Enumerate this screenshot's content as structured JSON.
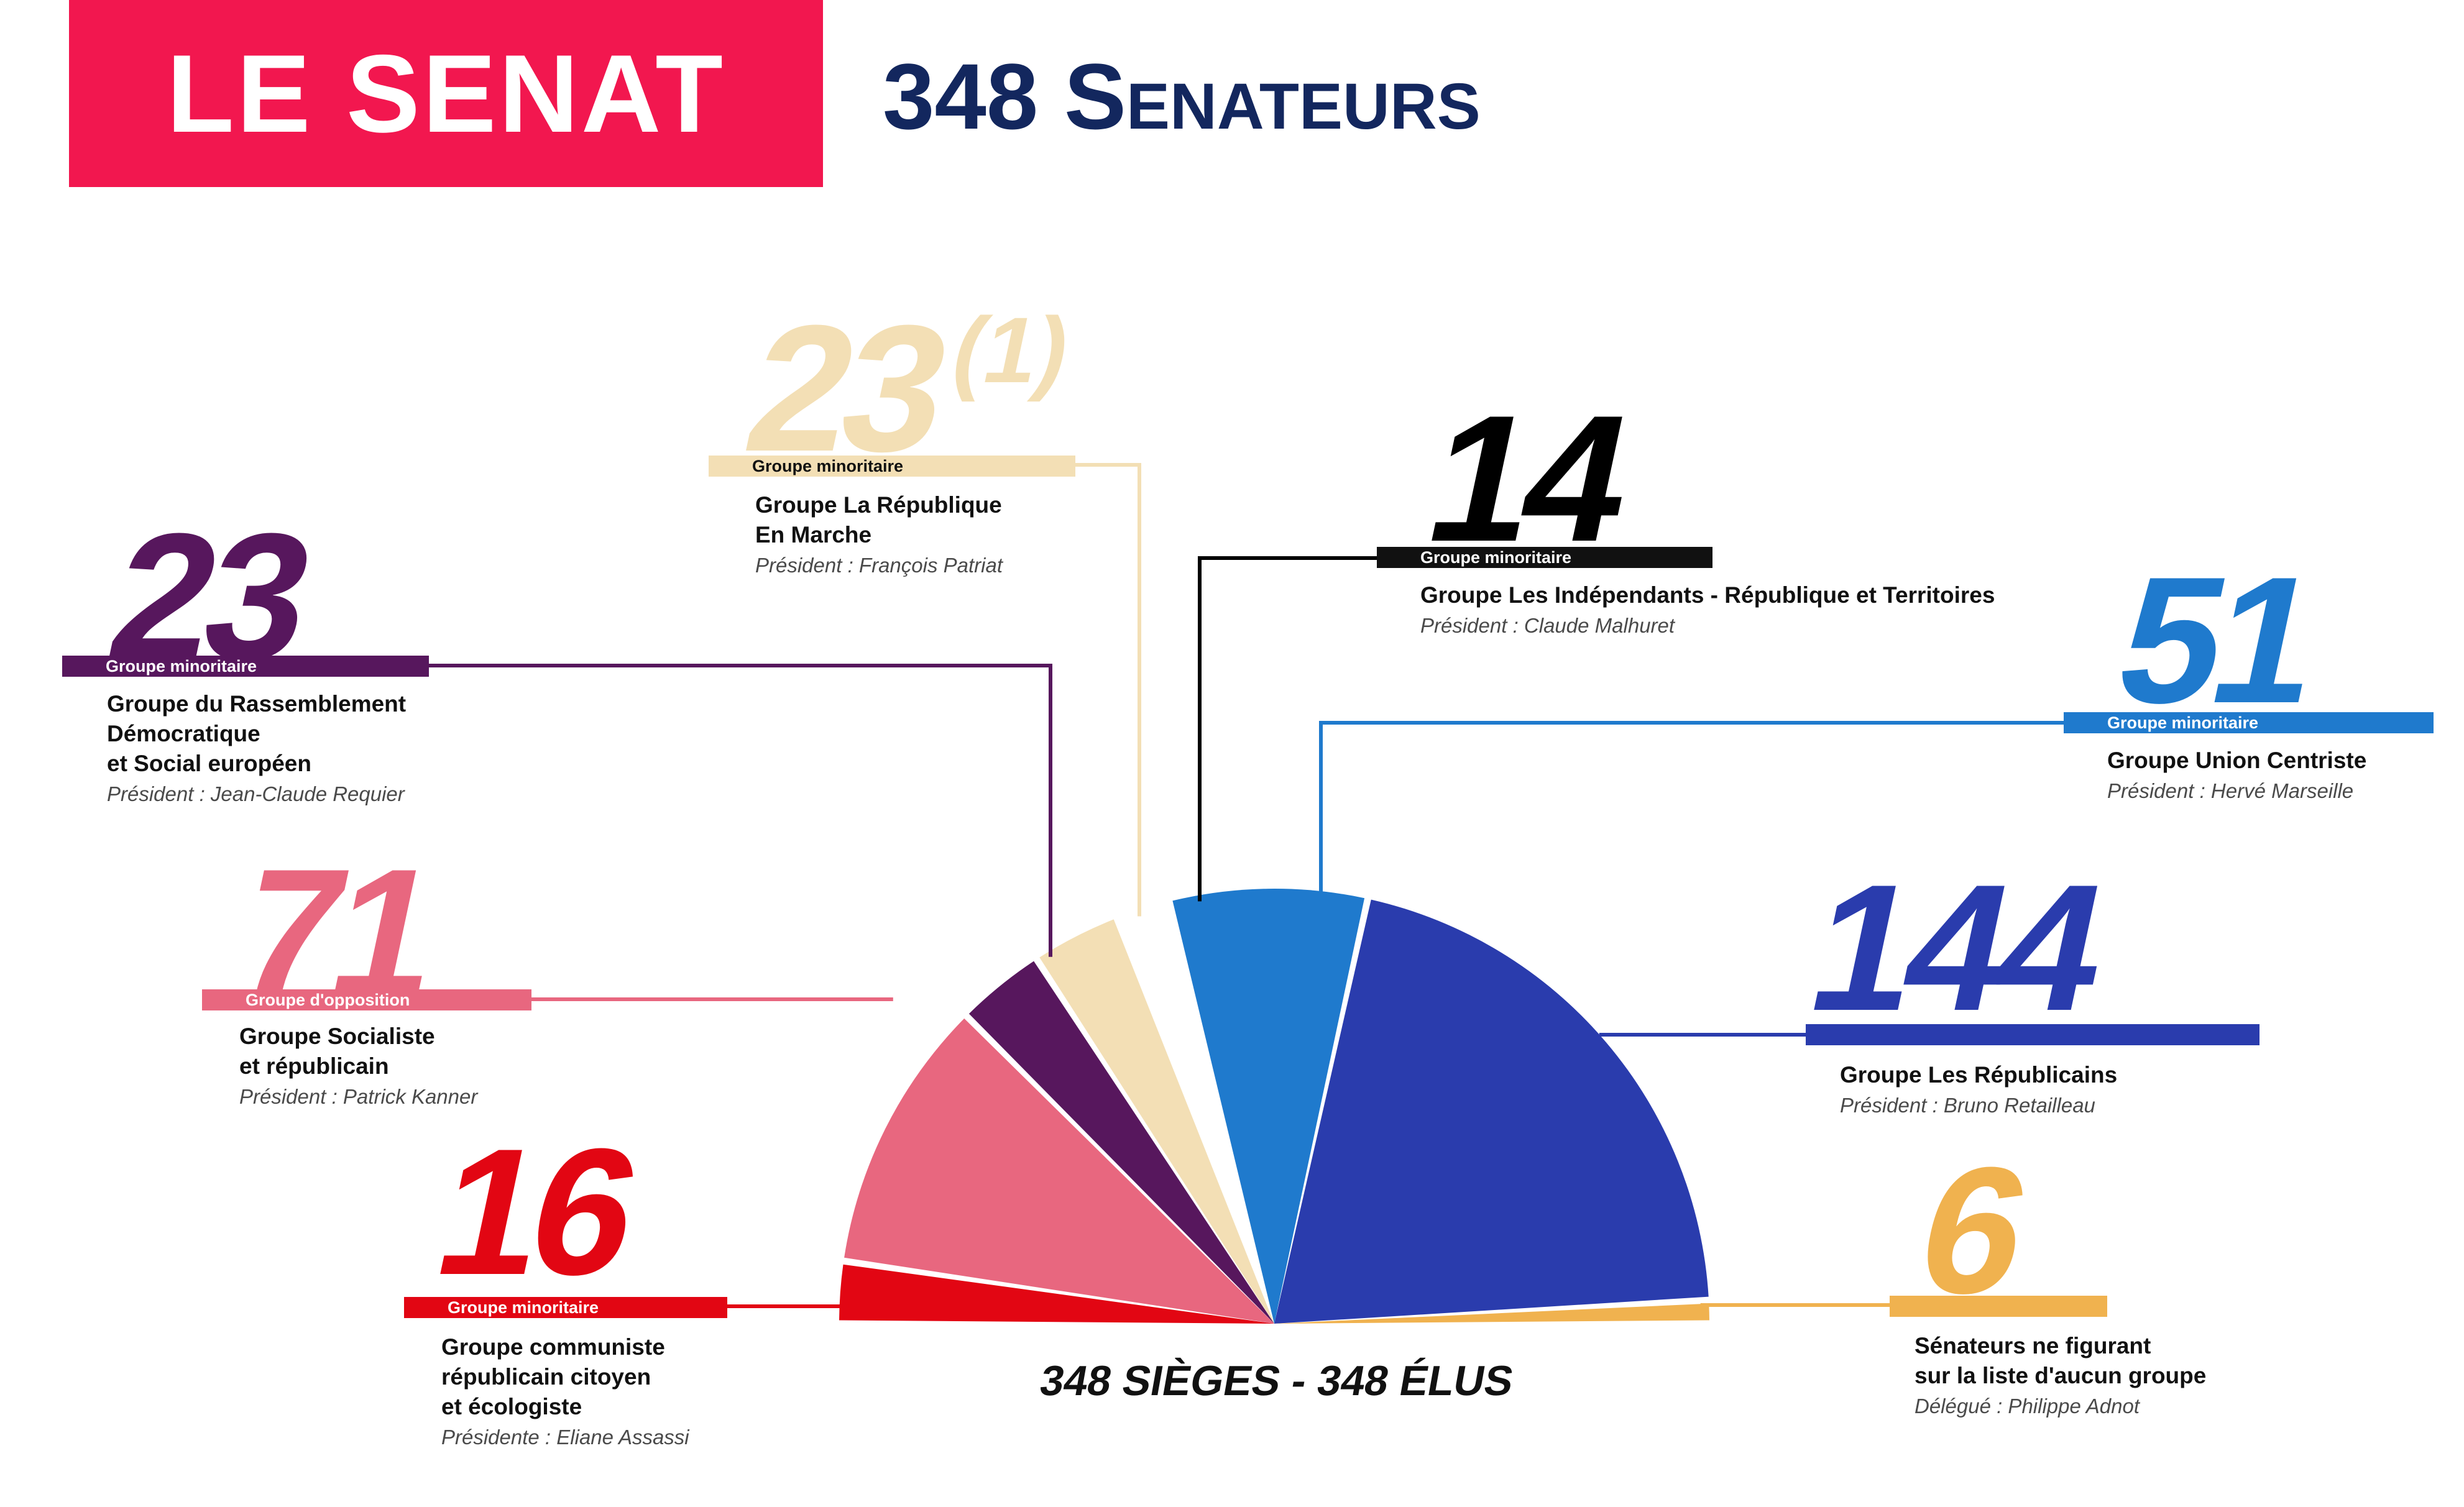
{
  "header": {
    "badge": "LE SENAT",
    "title": "348 Senateurs"
  },
  "chart_data": {
    "type": "pie",
    "layout": "semicircle",
    "total_label": "348 SIÈGES - 348 ÉLUS",
    "slices": [
      {
        "value": 16,
        "display": "16",
        "footnote": "",
        "status": "Groupe minoritaire",
        "lines": [
          "Groupe communiste",
          "républicain citoyen",
          "et écologiste"
        ],
        "president": "Présidente : Eliane Assassi",
        "color": "#e20613"
      },
      {
        "value": 71,
        "display": "71",
        "footnote": "",
        "status": "Groupe d'opposition",
        "lines": [
          "Groupe Socialiste",
          "et républicain"
        ],
        "president": "Président : Patrick Kanner",
        "color": "#e8677f"
      },
      {
        "value": 23,
        "display": "23",
        "footnote": "",
        "status": "Groupe minoritaire",
        "lines": [
          "Groupe du Rassemblement",
          "Démocratique",
          "et Social européen"
        ],
        "president": "Président : Jean-Claude Requier",
        "color": "#57175d"
      },
      {
        "value": 23,
        "display": "23",
        "footnote": "(1)",
        "status": "Groupe minoritaire",
        "lines": [
          "Groupe La République",
          "En Marche"
        ],
        "president": "Président : François Patriat",
        "color": "#f3dfb5"
      },
      {
        "value": 14,
        "display": "14",
        "footnote": "",
        "status": "Groupe minoritaire",
        "lines": [
          "Groupe Les Indépendants - République et Territoires"
        ],
        "president": "Président : Claude Malhuret",
        "color": "#ffffff"
      },
      {
        "value": 51,
        "display": "51",
        "footnote": "",
        "status": "Groupe minoritaire",
        "lines": [
          "Groupe Union Centriste"
        ],
        "president": "Président : Hervé Marseille",
        "color": "#1f7acd"
      },
      {
        "value": 144,
        "display": "144",
        "footnote": "",
        "status": "",
        "lines": [
          "Groupe Les Républicains"
        ],
        "president": "Président : Bruno Retailleau",
        "color": "#2a3cad"
      },
      {
        "value": 6,
        "display": "6",
        "footnote": "",
        "status": "",
        "lines": [
          "Sénateurs ne figurant",
          "sur la liste d'aucun groupe"
        ],
        "president": "Délégué : Philippe Adnot",
        "color": "#f0b24f"
      }
    ]
  },
  "colors": {
    "banner": "#f2174f",
    "headline": "#13275e",
    "label_black_number": "#000000",
    "bar_black": "#111111"
  }
}
